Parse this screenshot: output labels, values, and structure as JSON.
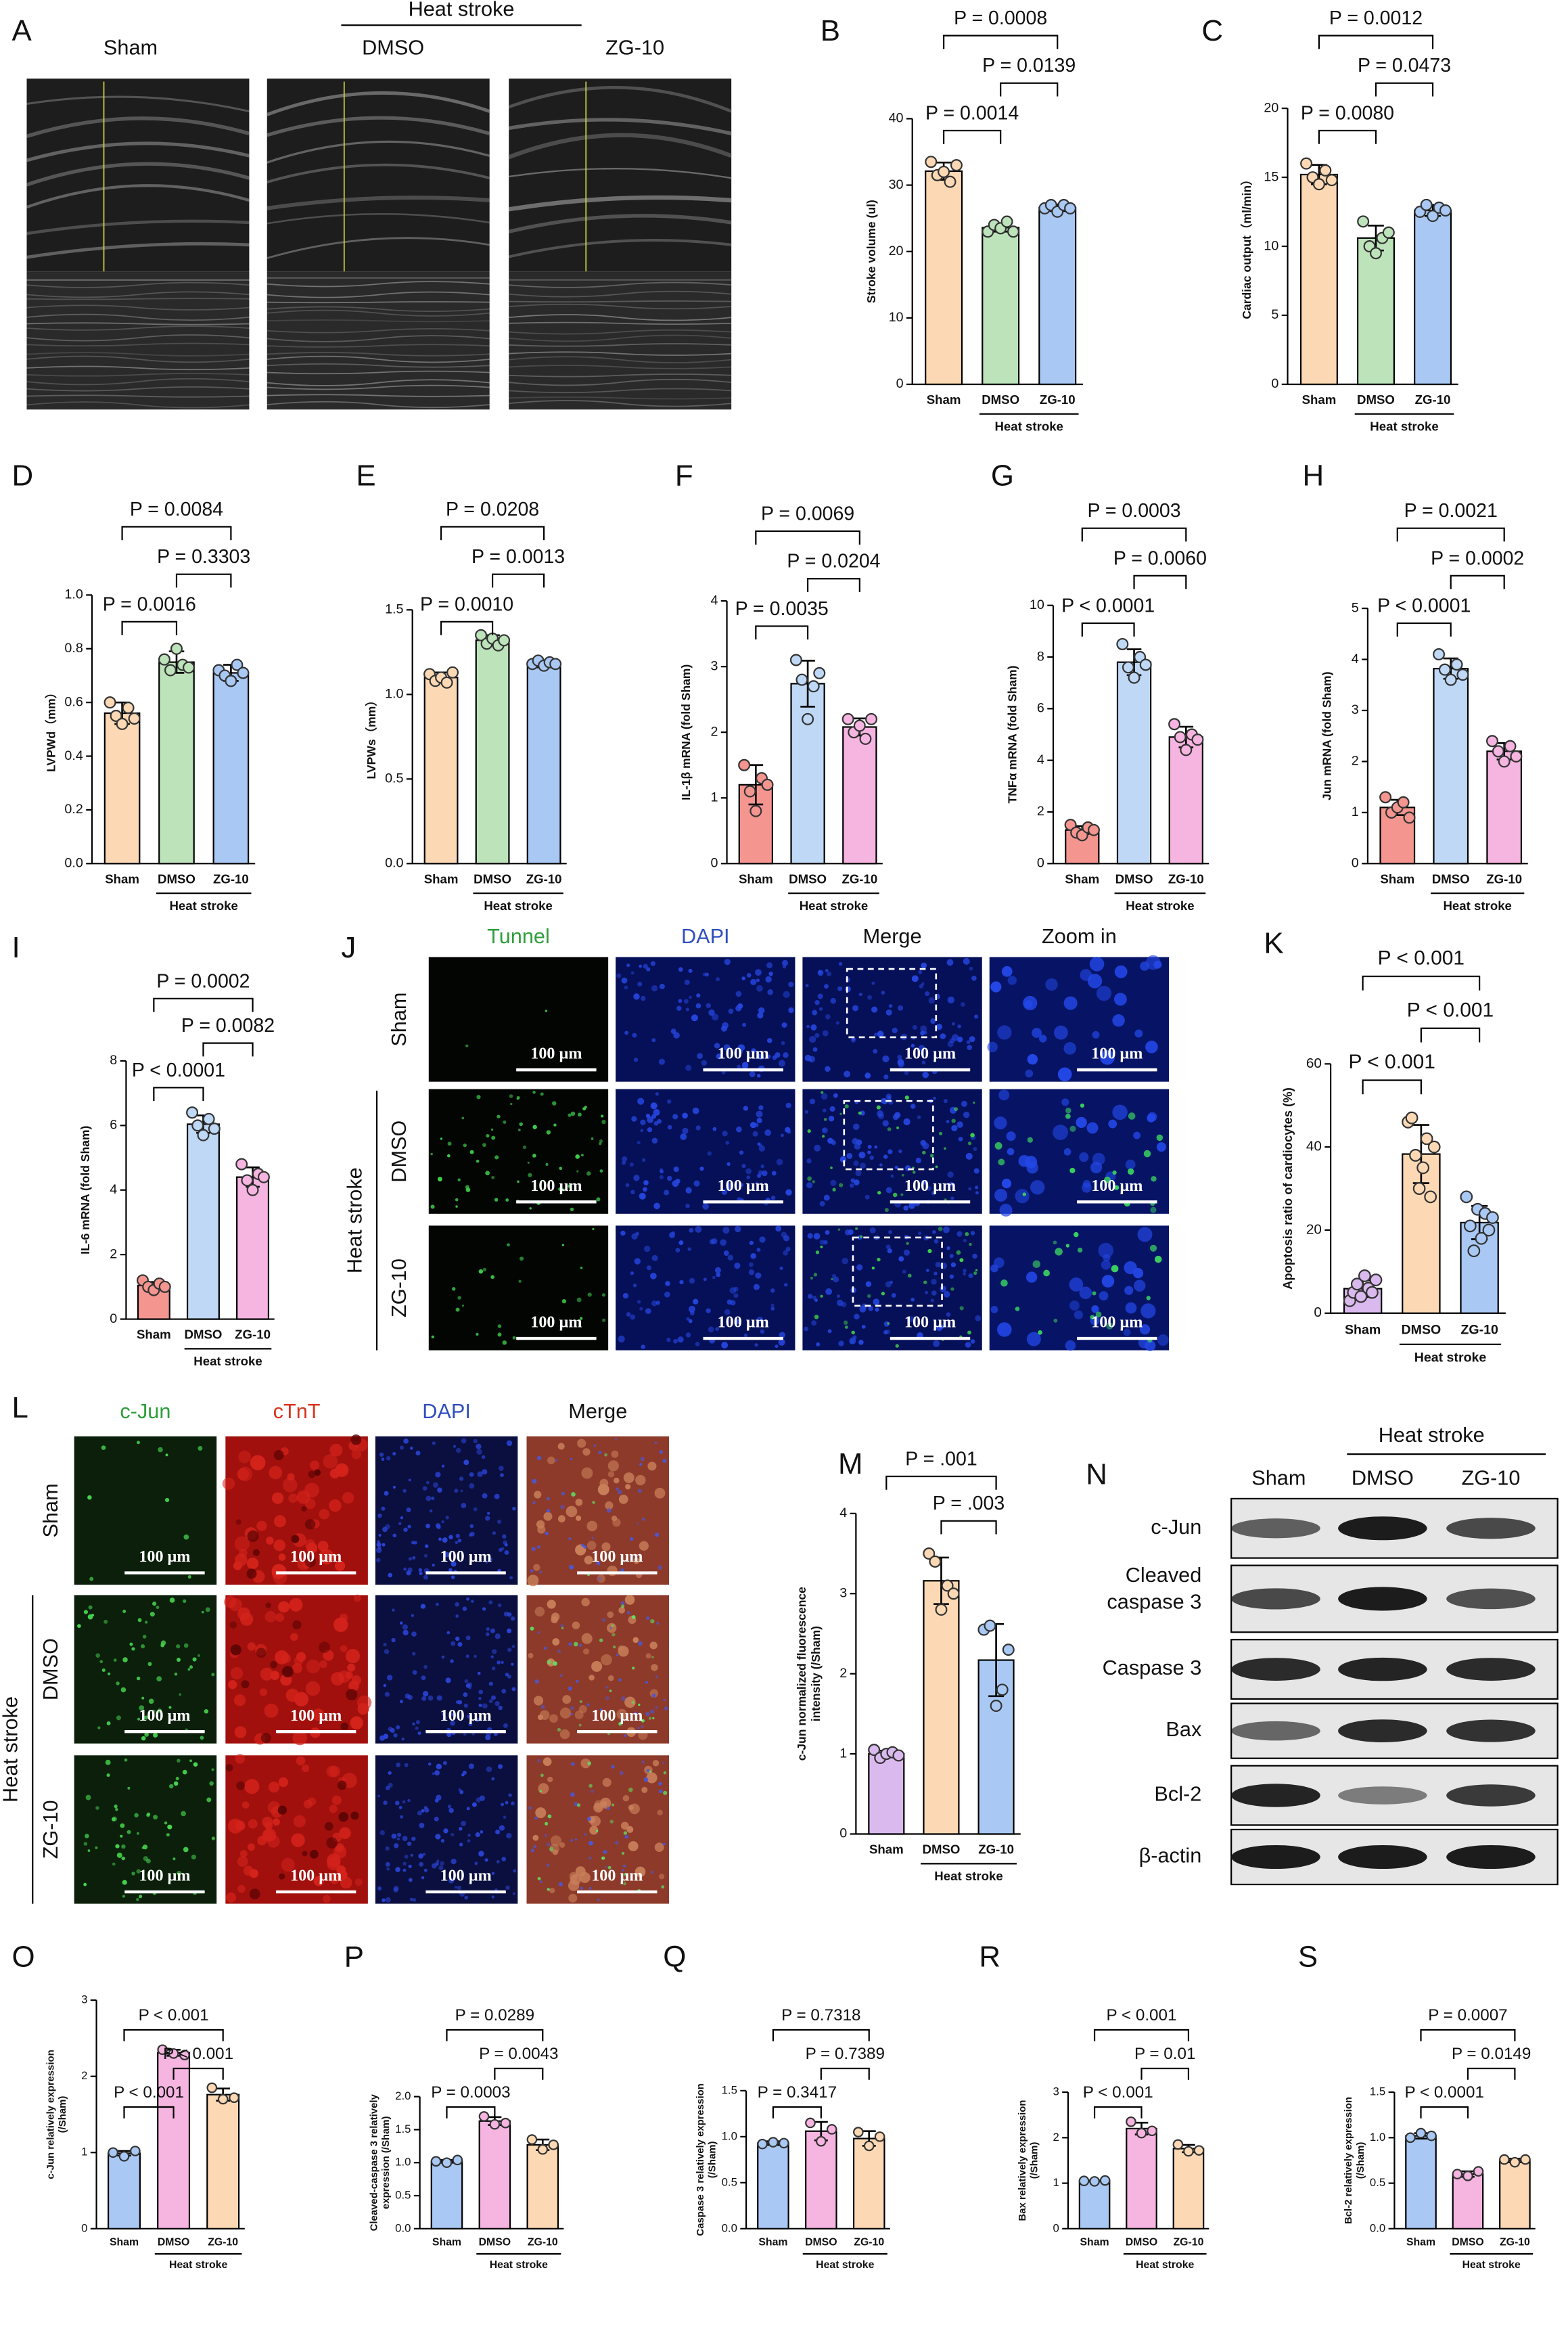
{
  "chart_data": [
    {
      "type": "bar",
      "panel": "B",
      "ylabel": [
        "Stroke volume (ul)"
      ],
      "categories": [
        "Sham",
        "DMSO",
        "ZG-10"
      ],
      "group_label": "Heat stroke",
      "colors": [
        "#fcd9b4",
        "#bde3bb",
        "#a9c9f4"
      ],
      "values": [
        32.1,
        23.6,
        26.6
      ],
      "errors": [
        1.3,
        0.6,
        0.5
      ],
      "points": [
        [
          33.5,
          31.5,
          32,
          30.5,
          33
        ],
        [
          23,
          24,
          23.5,
          24.5,
          23
        ],
        [
          26.5,
          27,
          26,
          27,
          26.5
        ]
      ],
      "ylim": [
        0,
        40
      ],
      "yticks": [
        0,
        10,
        20,
        30,
        40
      ],
      "comparisons": {
        "0-1": "P = 0.0014",
        "1-2": "P = 0.0139",
        "0-2": "P = 0.0008"
      }
    },
    {
      "type": "bar",
      "panel": "C",
      "ylabel": [
        "Cardiac output（ml/min）"
      ],
      "categories": [
        "Sham",
        "DMSO",
        "ZG-10"
      ],
      "group_label": "Heat stroke",
      "colors": [
        "#fcd9b4",
        "#bde3bb",
        "#a9c9f4"
      ],
      "values": [
        15.2,
        10.6,
        12.6
      ],
      "errors": [
        0.7,
        0.9,
        0.4
      ],
      "points": [
        [
          16,
          15,
          14.5,
          15.5,
          14.8
        ],
        [
          11.8,
          10,
          9.5,
          10.6,
          11
        ],
        [
          12.5,
          13,
          12.2,
          12.8,
          12.6
        ]
      ],
      "ylim": [
        0,
        20
      ],
      "yticks": [
        0,
        5,
        10,
        15,
        20
      ],
      "comparisons": {
        "0-1": "P = 0.0080",
        "1-2": "P = 0.0473",
        "0-2": "P = 0.0012"
      }
    },
    {
      "type": "bar",
      "panel": "D",
      "ylabel": [
        "LVPWd（mm）"
      ],
      "categories": [
        "Sham",
        "DMSO",
        "ZG-10"
      ],
      "group_label": "Heat stroke",
      "colors": [
        "#fcd9b4",
        "#bde3bb",
        "#a9c9f4"
      ],
      "values": [
        0.56,
        0.75,
        0.71
      ],
      "errors": [
        0.04,
        0.04,
        0.03
      ],
      "points": [
        [
          0.6,
          0.55,
          0.52,
          0.58,
          0.54
        ],
        [
          0.76,
          0.72,
          0.8,
          0.74,
          0.73
        ],
        [
          0.72,
          0.7,
          0.68,
          0.74,
          0.71
        ]
      ],
      "ylim": [
        0,
        1
      ],
      "yticks": [
        {
          "value": 0,
          "label": "0.0"
        },
        0.2,
        0.4,
        0.6,
        0.8,
        {
          "value": 1,
          "label": "1.0"
        }
      ],
      "comparisons": {
        "0-1": "P = 0.0016",
        "1-2": "P = 0.3303",
        "0-2": "P = 0.0084"
      }
    },
    {
      "type": "bar",
      "panel": "E",
      "ylabel": [
        "LVPWs（mm）"
      ],
      "categories": [
        "Sham",
        "DMSO",
        "ZG-10"
      ],
      "group_label": "Heat stroke",
      "colors": [
        "#fcd9b4",
        "#bde3bb",
        "#a9c9f4"
      ],
      "values": [
        1.1,
        1.32,
        1.18
      ],
      "errors": [
        0.03,
        0.03,
        0.02
      ],
      "points": [
        [
          1.12,
          1.08,
          1.1,
          1.07,
          1.13
        ],
        [
          1.35,
          1.3,
          1.33,
          1.29,
          1.32
        ],
        [
          1.18,
          1.2,
          1.17,
          1.19,
          1.18
        ]
      ],
      "ylim": [
        0,
        1.5
      ],
      "yticks": [
        {
          "value": 0,
          "label": "0.0"
        },
        0.5,
        {
          "value": 1,
          "label": "1.0"
        },
        1.5
      ],
      "comparisons": {
        "0-1": "P = 0.0010",
        "1-2": "P = 0.0013",
        "0-2": "P = 0.0208"
      }
    },
    {
      "type": "bar",
      "panel": "F",
      "ylabel": [
        "IL-1β  mRNA (fold Sham)"
      ],
      "categories": [
        "Sham",
        "DMSO",
        "ZG-10"
      ],
      "group_label": "Heat stroke",
      "colors": [
        "#f4958f",
        "#bed8f5",
        "#f6b5e1"
      ],
      "values": [
        1.2,
        2.74,
        2.08
      ],
      "errors": [
        0.3,
        0.35,
        0.13
      ],
      "points": [
        [
          1.5,
          1.1,
          0.8,
          1.3,
          1.2
        ],
        [
          3.1,
          2.8,
          2.2,
          2.7,
          2.9
        ],
        [
          2.2,
          2,
          2.1,
          1.9,
          2.2
        ]
      ],
      "ylim": [
        0,
        4
      ],
      "yticks": [
        0,
        1,
        2,
        3,
        4
      ],
      "comparisons": {
        "0-1": "P = 0.0035",
        "1-2": "P = 0.0204",
        "0-2": "P = 0.0069"
      }
    },
    {
      "type": "bar",
      "panel": "G",
      "ylabel": [
        "TNFα  mRNA (fold Sham)"
      ],
      "categories": [
        "Sham",
        "DMSO",
        "ZG-10"
      ],
      "group_label": "Heat stroke",
      "colors": [
        "#f4958f",
        "#bed8f5",
        "#f6b5e1"
      ],
      "values": [
        1.3,
        7.8,
        4.9
      ],
      "errors": [
        0.15,
        0.5,
        0.4
      ],
      "points": [
        [
          1.5,
          1.2,
          1.1,
          1.4,
          1.3
        ],
        [
          8.5,
          7.6,
          7.2,
          8,
          7.7
        ],
        [
          5.4,
          4.9,
          4.4,
          5,
          4.8
        ]
      ],
      "ylim": [
        0,
        10
      ],
      "yticks": [
        0,
        2,
        4,
        6,
        8,
        10
      ],
      "comparisons": {
        "0-1": "P < 0.0001",
        "1-2": "P = 0.0060",
        "0-2": "P = 0.0003"
      }
    },
    {
      "type": "bar",
      "panel": "H",
      "ylabel": [
        "Jun  mRNA (fold Sham)"
      ],
      "categories": [
        "Sham",
        "DMSO",
        "ZG-10"
      ],
      "group_label": "Heat stroke",
      "colors": [
        "#f4958f",
        "#bed8f5",
        "#f6b5e1"
      ],
      "values": [
        1.1,
        3.82,
        2.2
      ],
      "errors": [
        0.15,
        0.2,
        0.16
      ],
      "points": [
        [
          1.3,
          1,
          1.1,
          1.2,
          0.9
        ],
        [
          4.1,
          3.8,
          3.6,
          3.9,
          3.7
        ],
        [
          2.4,
          2.2,
          2,
          2.3,
          2.1
        ]
      ],
      "ylim": [
        0,
        5
      ],
      "yticks": [
        0,
        1,
        2,
        3,
        4,
        5
      ],
      "comparisons": {
        "0-1": "P < 0.0001",
        "1-2": "P = 0.0002",
        "0-2": "P = 0.0021"
      }
    },
    {
      "type": "bar",
      "panel": "I",
      "ylabel": [
        "IL-6  mRNA (fold Sham)"
      ],
      "categories": [
        "Sham",
        "DMSO",
        "ZG-10"
      ],
      "group_label": "Heat stroke",
      "colors": [
        "#f4958f",
        "#bed8f5",
        "#f6b5e1"
      ],
      "values": [
        1.04,
        6.04,
        4.4
      ],
      "errors": [
        0.11,
        0.27,
        0.3
      ],
      "points": [
        [
          1.2,
          1,
          0.9,
          1.1,
          1
        ],
        [
          6.4,
          6,
          5.7,
          6.2,
          5.9
        ],
        [
          4.8,
          4.3,
          4,
          4.5,
          4.4
        ]
      ],
      "ylim": [
        0,
        8
      ],
      "yticks": [
        0,
        2,
        4,
        6,
        8
      ],
      "comparisons": {
        "0-1": "P < 0.0001",
        "1-2": "P = 0.0082",
        "0-2": "P = 0.0002"
      }
    },
    {
      "type": "bar",
      "panel": "K",
      "ylabel": [
        "Apoptosis ratio of cardiocytes (%)"
      ],
      "categories": [
        "Sham",
        "DMSO",
        "ZG-10"
      ],
      "group_label": "Heat stroke",
      "colors": [
        "#dabaee",
        "#fcd9b4",
        "#a9c9f4"
      ],
      "values": [
        5.9,
        38.3,
        21.8
      ],
      "errors": [
        2,
        7,
        4
      ],
      "points": [
        [
          3,
          5,
          7,
          4,
          9,
          6,
          5,
          8
        ],
        [
          46,
          47,
          38,
          30,
          35,
          42,
          28,
          40
        ],
        [
          28,
          21,
          15,
          25,
          18,
          24,
          20,
          23
        ]
      ],
      "ylim": [
        0,
        60
      ],
      "yticks": [
        0,
        20,
        40,
        60
      ],
      "comparisons": {
        "0-1": "P < 0.001",
        "1-2": "P < 0.001",
        "0-2": "P < 0.001"
      }
    },
    {
      "type": "bar",
      "panel": "M",
      "ylabel": [
        "c-Jun normalized fluorescence",
        "intensity (/Sham)"
      ],
      "categories": [
        "Sham",
        "DMSO",
        "ZG-10"
      ],
      "group_label": "Heat stroke",
      "colors": [
        "#dabaee",
        "#fcd9b4",
        "#a9c9f4"
      ],
      "values": [
        1,
        3.16,
        2.17
      ],
      "errors": [
        0.04,
        0.29,
        0.45
      ],
      "points": [
        [
          1.05,
          0.95,
          1,
          1.02,
          0.98
        ],
        [
          3.5,
          3.4,
          2.8,
          3.1,
          3
        ],
        [
          2.55,
          2.6,
          1.6,
          1.8,
          2.3
        ]
      ],
      "ylim": [
        0,
        4
      ],
      "yticks": [
        0,
        1,
        2,
        3,
        4
      ],
      "comparisons": {
        "1-2": "P = .003",
        "0-2": "P = .001"
      }
    },
    {
      "type": "bar",
      "panel": "O",
      "ylabel": [
        "c-Jun relatively expression",
        "(/Sham)"
      ],
      "categories": [
        "Sham",
        "DMSO",
        "ZG-10"
      ],
      "group_label": "Heat stroke",
      "colors": [
        "#a9c9f4",
        "#f6b5e1",
        "#fcd9b4"
      ],
      "values": [
        0.99,
        2.31,
        1.76
      ],
      "errors": [
        0.03,
        0.04,
        0.08
      ],
      "points": [
        [
          1,
          0.95,
          1.02
        ],
        [
          2.35,
          2.3,
          2.28
        ],
        [
          1.85,
          1.7,
          1.72
        ]
      ],
      "ylim": [
        0,
        3
      ],
      "yticks": [
        0,
        1,
        2,
        3
      ],
      "comparisons": {
        "0-1": "P < 0.001",
        "1-2": "P < 0.001",
        "0-2": "P < 0.001"
      }
    },
    {
      "type": "bar",
      "panel": "P",
      "ylabel": [
        "Cleaved-caspase 3 relatively",
        "expression (/Sham)"
      ],
      "categories": [
        "Sham",
        "DMSO",
        "ZG-10"
      ],
      "group_label": "Heat stroke",
      "colors": [
        "#a9c9f4",
        "#f6b5e1",
        "#fcd9b4"
      ],
      "values": [
        1.02,
        1.63,
        1.27
      ],
      "errors": [
        0.02,
        0.06,
        0.08
      ],
      "points": [
        [
          1.02,
          1,
          1.04
        ],
        [
          1.7,
          1.58,
          1.6
        ],
        [
          1.35,
          1.2,
          1.27
        ]
      ],
      "ylim": [
        0,
        2
      ],
      "yticks": [
        {
          "value": 0,
          "label": "0.0"
        },
        0.5,
        {
          "value": 1,
          "label": "1.0"
        },
        1.5,
        {
          "value": 2,
          "label": "2.0"
        }
      ],
      "comparisons": {
        "0-1": "P = 0.0003",
        "1-2": "P = 0.0043",
        "0-2": "P = 0.0289"
      }
    },
    {
      "type": "bar",
      "panel": "Q",
      "ylabel": [
        "Caspase 3 relatively expression",
        "(/Sham)"
      ],
      "categories": [
        "Sham",
        "DMSO",
        "ZG-10"
      ],
      "group_label": "Heat stroke",
      "colors": [
        "#a9c9f4",
        "#f6b5e1",
        "#fcd9b4"
      ],
      "values": [
        0.93,
        1.06,
        0.98
      ],
      "errors": [
        0.02,
        0.1,
        0.08
      ],
      "points": [
        [
          0.92,
          0.94,
          0.93
        ],
        [
          1.15,
          0.95,
          1.08
        ],
        [
          1.05,
          0.9,
          1
        ]
      ],
      "ylim": [
        0,
        1.5
      ],
      "yticks": [
        {
          "value": 0,
          "label": "0.0"
        },
        0.5,
        {
          "value": 1,
          "label": "1.0"
        },
        1.5
      ],
      "comparisons": {
        "0-1": "P = 0.3417",
        "1-2": "P = 0.7389",
        "0-2": "P = 0.7318"
      }
    },
    {
      "type": "bar",
      "panel": "R",
      "ylabel": [
        "Bax relatively expression",
        "(/Sham)"
      ],
      "categories": [
        "Sham",
        "DMSO",
        "ZG-10"
      ],
      "group_label": "Heat stroke",
      "colors": [
        "#a9c9f4",
        "#f6b5e1",
        "#fcd9b4"
      ],
      "values": [
        1.05,
        2.2,
        1.76
      ],
      "errors": [
        0.01,
        0.13,
        0.08
      ],
      "points": [
        [
          1.05,
          1.04,
          1.06
        ],
        [
          2.35,
          2.1,
          2.15
        ],
        [
          1.85,
          1.7,
          1.72
        ]
      ],
      "ylim": [
        0,
        3
      ],
      "yticks": [
        0,
        1,
        2,
        3
      ],
      "comparisons": {
        "0-1": "P < 0.001",
        "1-2": "P = 0.01",
        "0-2": "P < 0.001"
      }
    },
    {
      "type": "bar",
      "panel": "S",
      "ylabel": [
        "Bcl-2 relatively expression",
        "(/Sham)"
      ],
      "categories": [
        "Sham",
        "DMSO",
        "ZG-10"
      ],
      "group_label": "Heat stroke",
      "colors": [
        "#a9c9f4",
        "#f6b5e1",
        "#fcd9b4"
      ],
      "values": [
        1.02,
        0.6,
        0.75
      ],
      "errors": [
        0.03,
        0.03,
        0.02
      ],
      "points": [
        [
          1,
          1.05,
          1.02
        ],
        [
          0.6,
          0.58,
          0.63
        ],
        [
          0.76,
          0.73,
          0.76
        ]
      ],
      "ylim": [
        0,
        1.5
      ],
      "yticks": [
        {
          "value": 0,
          "label": "0.0"
        },
        0.5,
        {
          "value": 1,
          "label": "1.0"
        },
        1.5
      ],
      "comparisons": {
        "0-1": "P < 0.0001",
        "1-2": "P = 0.0149",
        "0-2": "P = 0.0007"
      }
    }
  ],
  "panel_A": {
    "label": "A",
    "columns": [
      "Sham",
      "DMSO",
      "ZG-10"
    ],
    "group": "Heat stroke"
  },
  "panel_J": {
    "label": "J",
    "columns": [
      "Tunnel",
      "DAPI",
      "Merge",
      "Zoom in"
    ],
    "rows": [
      "Sham",
      "DMSO",
      "ZG-10"
    ],
    "group": "Heat stroke",
    "scale_bar": "100 µm"
  },
  "panel_L": {
    "label": "L",
    "columns": [
      "c-Jun",
      "cTnT",
      "DAPI",
      "Merge"
    ],
    "rows": [
      "Sham",
      "DMSO",
      "ZG-10"
    ],
    "group": "Heat stroke",
    "scale_bar": "100 µm"
  },
  "panel_N": {
    "label": "N",
    "lanes": [
      "Sham",
      "DMSO",
      "ZG-10"
    ],
    "group": "Heat stroke",
    "bands": [
      [
        "c-Jun"
      ],
      [
        "Cleaved",
        "caspase 3"
      ],
      [
        "Caspase 3"
      ],
      [
        "Bax"
      ],
      [
        "Bcl-2"
      ],
      [
        "β-actin"
      ]
    ]
  }
}
